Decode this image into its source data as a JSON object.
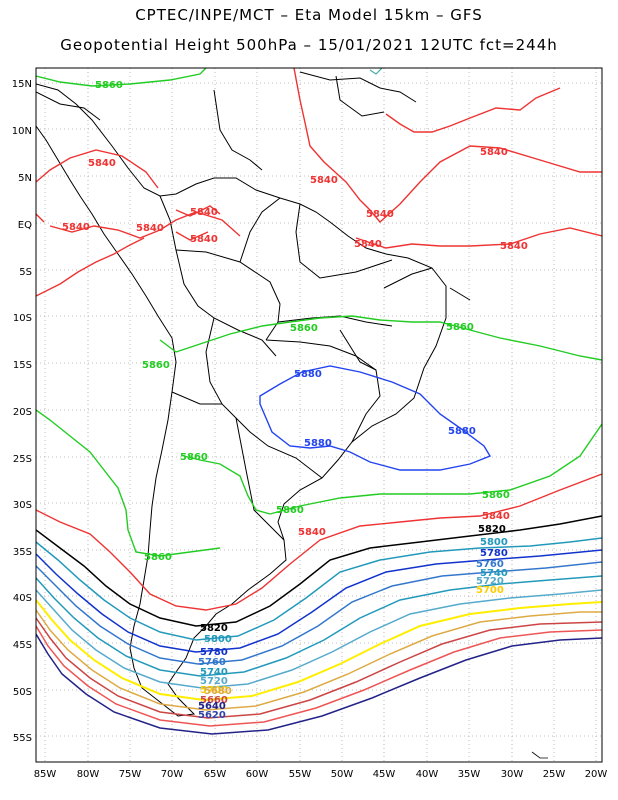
{
  "header": {
    "line1": "CPTEC/INPE/MCT –  Eta Model 15km – GFS",
    "line2": "Geopotential Height 500hPa – 15/01/2021 12UTC fct=244h"
  },
  "axes": {
    "lat_labels": [
      "15N",
      "10N",
      "5N",
      "EQ",
      "5S",
      "10S",
      "15S",
      "20S",
      "25S",
      "30S",
      "35S",
      "40S",
      "45S",
      "50S",
      "55S"
    ],
    "lon_labels": [
      "85W",
      "80W",
      "75W",
      "70W",
      "65W",
      "60W",
      "55W",
      "50W",
      "45W",
      "40W",
      "35W",
      "30W",
      "25W",
      "20W"
    ]
  },
  "contour_colors": {
    "5840": "#ee3333",
    "5860": "#22cc22",
    "5880": "#2244ee",
    "5820": "#000000",
    "5800": "#2299bb",
    "5780": "#1133cc",
    "5760": "#3377cc",
    "5740": "#2299bb",
    "5720": "#55aacc",
    "5700": "#ffee00",
    "5680": "#ddaa44",
    "5660": "#cc4444",
    "5640": "#222288",
    "coast": "#000000",
    "ocean_feature": "#44aaaa"
  },
  "labels": {
    "n5860_a": "5860",
    "n5840_b": "5840",
    "n5840_c": "5840",
    "n5840_d": "5840",
    "n5840_e": "5840",
    "n5840_f": "5840",
    "n5840_g": "5840",
    "n5840_h": "5840",
    "n5840_i": "5840",
    "n5840_j": "5840",
    "n5840_k": "5840",
    "n5860_l": "5860",
    "n5860_m": "5860",
    "n5860_n": "5860",
    "n5860_o": "5860",
    "n5860_p": "5860",
    "n5860_q": "5860",
    "n5860_r": "5860",
    "n5880_s": "5880",
    "n5880_t": "5880",
    "n5880_u": "5880",
    "n5840_v": "5840",
    "n5840_w": "5840",
    "n5820_x": "5820",
    "n5800_y": "5800",
    "n5780_z": "5780",
    "n5760_a2": "5760",
    "n5740_b2": "5740",
    "n5720_c2": "5720",
    "n5700_d2": "5700",
    "n5820_e2": "5820",
    "n5800_f2": "5800",
    "n5780_g2": "5780",
    "n5760_h2": "5760",
    "n5740_i2": "5740",
    "n5720_j2": "5720",
    "n5700_k2": "5700",
    "n5680_l2": "5680",
    "n5660_m2": "5660",
    "n5640_n2": "5640",
    "n5620_o2": "5620"
  }
}
